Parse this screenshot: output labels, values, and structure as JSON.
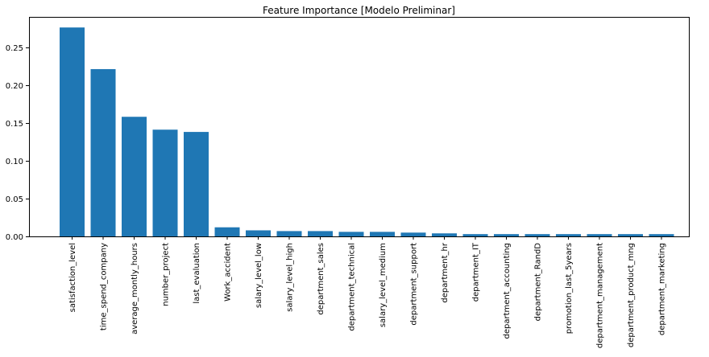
{
  "chart_data": {
    "type": "bar",
    "title": "Feature Importance [Modelo Preliminar]",
    "xlabel": "",
    "ylabel": "",
    "categories": [
      "satisfaction_level",
      "time_spend_company",
      "average_montly_hours",
      "number_project",
      "last_evaluation",
      "Work_accident",
      "salary_level_low",
      "salary_level_high",
      "department_sales",
      "department_technical",
      "salary_level_medium",
      "department_support",
      "department_hr",
      "department_IT",
      "department_accounting",
      "department_RandD",
      "promotion_last_5years",
      "department_management",
      "department_product_mng",
      "department_marketing"
    ],
    "values": [
      0.276,
      0.221,
      0.158,
      0.141,
      0.138,
      0.012,
      0.008,
      0.007,
      0.007,
      0.006,
      0.006,
      0.005,
      0.004,
      0.003,
      0.003,
      0.003,
      0.003,
      0.003,
      0.003,
      0.003
    ],
    "ylim": [
      0,
      0.29
    ],
    "yticks": [
      0.0,
      0.05,
      0.1,
      0.15,
      0.2,
      0.25
    ],
    "ytick_labels": [
      "0.00",
      "0.05",
      "0.10",
      "0.15",
      "0.20",
      "0.25"
    ],
    "grid": false,
    "legend": "none",
    "bar_color": "#1f77b4"
  }
}
